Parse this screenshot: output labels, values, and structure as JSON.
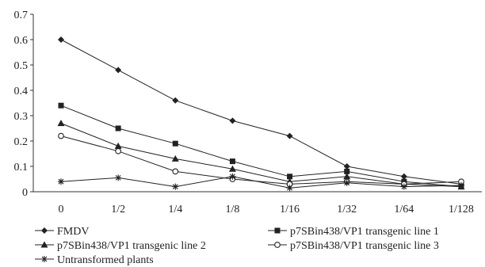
{
  "chart_data": {
    "type": "line",
    "title": "",
    "xlabel": "",
    "ylabel": "",
    "categories": [
      "0",
      "1/2",
      "1/4",
      "1/8",
      "1/16",
      "1/32",
      "1/64",
      "1/128"
    ],
    "ylim": [
      0,
      0.7
    ],
    "yticks": [
      "0",
      "0.1",
      "0.2",
      "0.3",
      "0.4",
      "0.5",
      "0.6",
      "0.7"
    ],
    "grid": false,
    "legend_position": "bottom",
    "series": [
      {
        "name": "FMDV",
        "marker": "diamond",
        "values": [
          0.6,
          0.48,
          0.36,
          0.28,
          0.22,
          0.1,
          0.06,
          0.03
        ]
      },
      {
        "name": "p7SBin438/VP1 transgenic line 1",
        "marker": "square",
        "values": [
          0.34,
          0.25,
          0.19,
          0.12,
          0.06,
          0.08,
          0.04,
          0.02
        ]
      },
      {
        "name": "p7SBin438/VP1 transgenic line 2",
        "marker": "triangle",
        "values": [
          0.27,
          0.18,
          0.13,
          0.09,
          0.04,
          0.06,
          0.03,
          0.02
        ]
      },
      {
        "name": "p7SBin438/VP1 transgenic line 3",
        "marker": "circle",
        "values": [
          0.22,
          0.16,
          0.08,
          0.05,
          0.03,
          0.04,
          0.03,
          0.04
        ]
      },
      {
        "name": "Untransformed plants",
        "marker": "star",
        "values": [
          0.04,
          0.055,
          0.02,
          0.06,
          0.015,
          0.035,
          0.02,
          0.025
        ]
      }
    ]
  }
}
